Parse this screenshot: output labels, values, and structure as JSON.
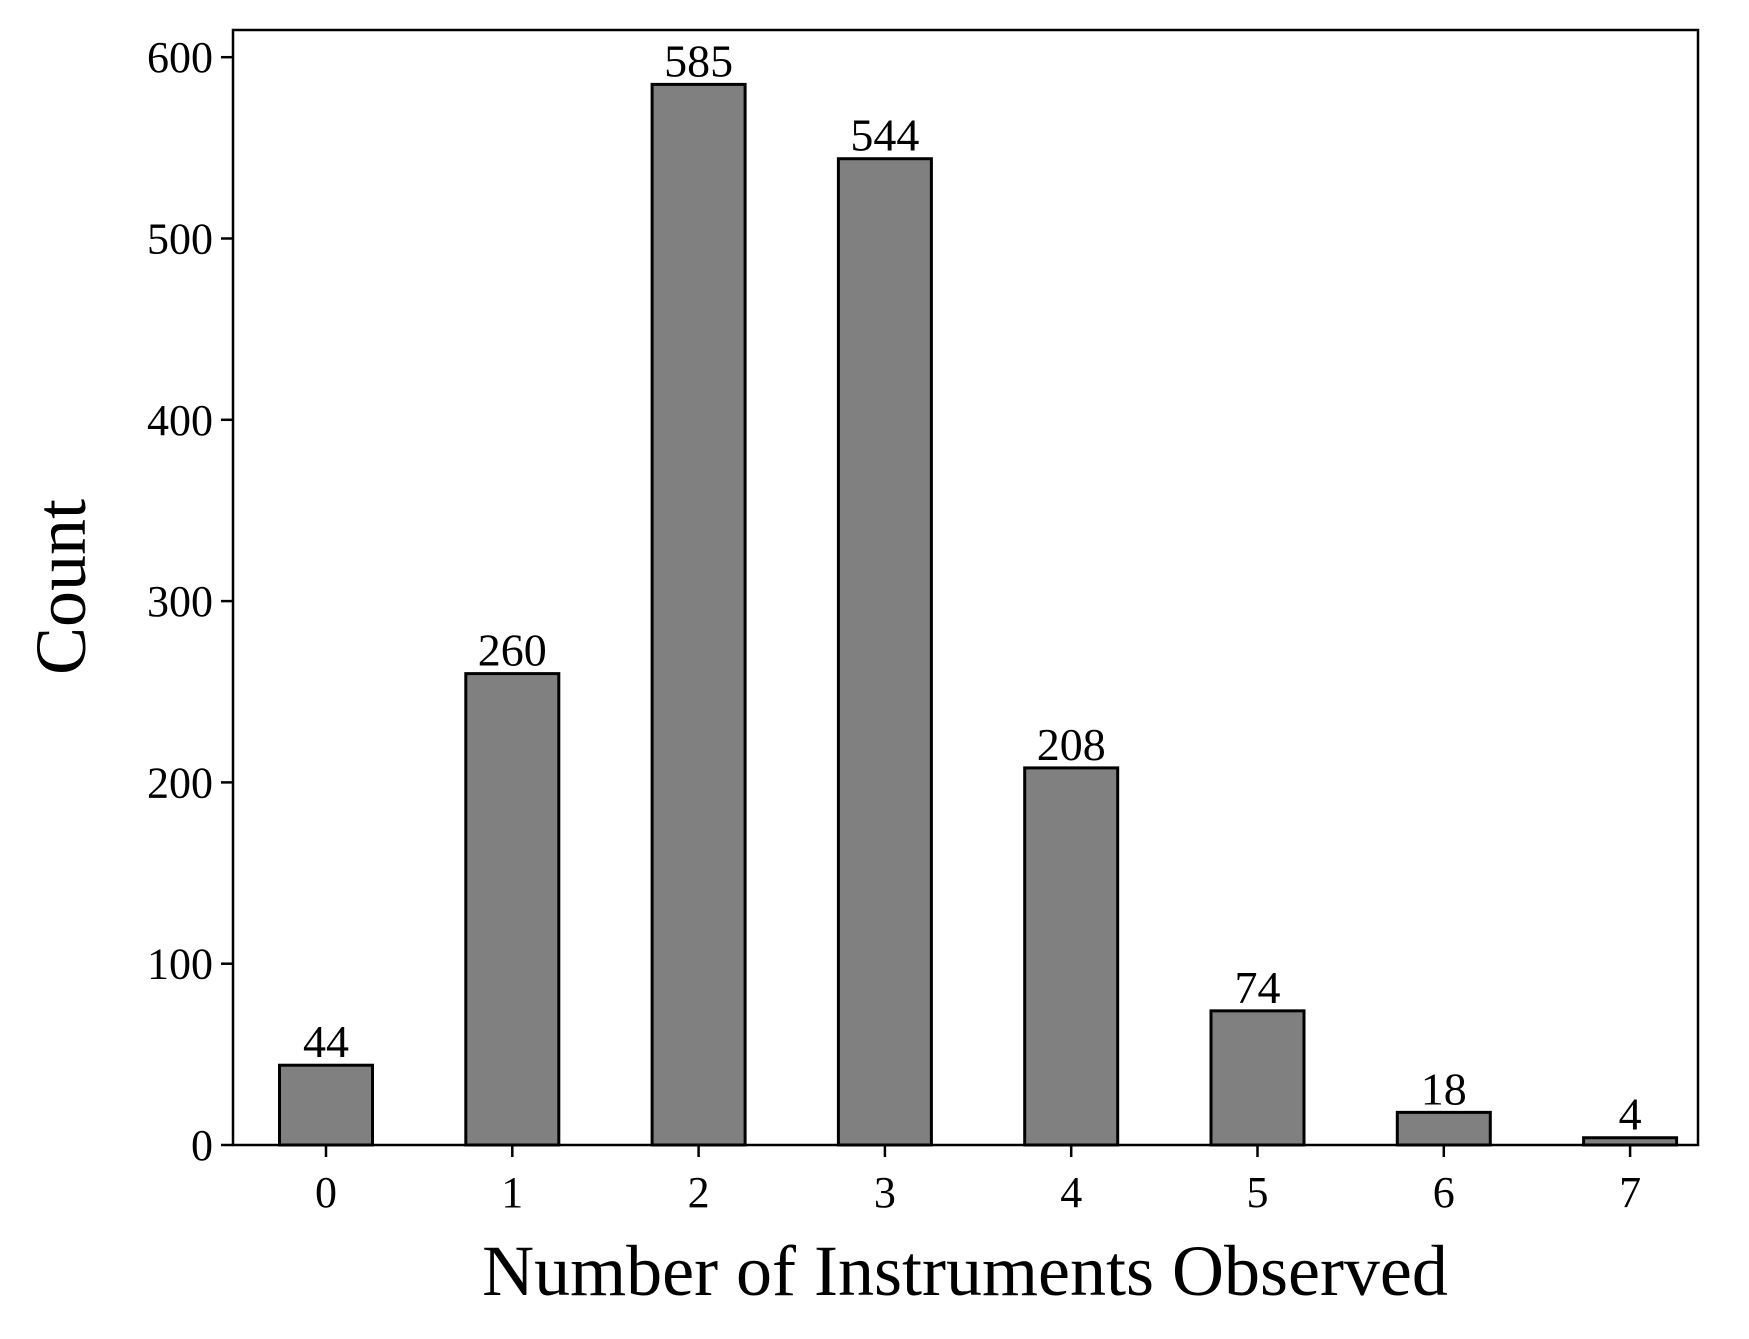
{
  "chart_data": {
    "type": "bar",
    "title": "",
    "xlabel": "Number of Instruments Observed",
    "ylabel": "Count",
    "categories": [
      "0",
      "1",
      "2",
      "3",
      "4",
      "5",
      "6",
      "7"
    ],
    "values": [
      44,
      260,
      585,
      544,
      208,
      74,
      18,
      4
    ],
    "data_labels": [
      "44",
      "260",
      "585",
      "544",
      "208",
      "74",
      "18",
      "4"
    ],
    "ylim": [
      0,
      615
    ],
    "yticks": [
      0,
      100,
      200,
      300,
      400,
      500,
      600
    ],
    "grid": false,
    "legend": "none",
    "bar_color": "#808080",
    "bar_edge_color": "#000000"
  }
}
